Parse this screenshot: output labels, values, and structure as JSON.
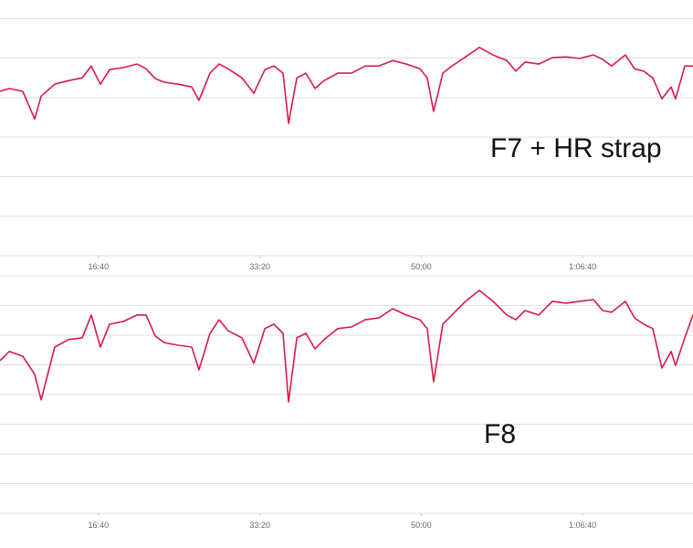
{
  "chart_data": [
    {
      "type": "line",
      "annotation": "F7 + HR strap",
      "color": "#d81b45",
      "grid": true,
      "xlim": [
        390,
        4684
      ],
      "xticks": [
        {
          "value": 1000,
          "label": "16:40"
        },
        {
          "value": 2000,
          "label": "33:20"
        },
        {
          "value": 3000,
          "label": "50:00"
        },
        {
          "value": 4000,
          "label": "1:06:40"
        }
      ],
      "ylim": [
        0,
        6.47
      ],
      "yticks": [
        0,
        1,
        2,
        3,
        4,
        5,
        6
      ],
      "x": [
        390,
        447,
        531,
        605,
        645,
        729,
        814,
        899,
        956,
        1012,
        1069,
        1154,
        1239,
        1295,
        1352,
        1408,
        1493,
        1578,
        1623,
        1691,
        1748,
        1804,
        1889,
        1963,
        2031,
        2087,
        2144,
        2178,
        2229,
        2285,
        2342,
        2398,
        2483,
        2568,
        2653,
        2738,
        2823,
        2907,
        2992,
        3037,
        3077,
        3134,
        3190,
        3275,
        3360,
        3445,
        3530,
        3586,
        3643,
        3728,
        3812,
        3897,
        3982,
        4067,
        4124,
        4180,
        4265,
        4322,
        4378,
        4435,
        4491,
        4548,
        4576,
        4633,
        4684
      ],
      "values": [
        4.16,
        4.23,
        4.16,
        3.46,
        4.04,
        4.34,
        4.43,
        4.5,
        4.8,
        4.34,
        4.71,
        4.76,
        4.85,
        4.73,
        4.48,
        4.39,
        4.34,
        4.27,
        3.93,
        4.62,
        4.85,
        4.73,
        4.5,
        4.11,
        4.71,
        4.8,
        4.62,
        3.35,
        4.5,
        4.62,
        4.23,
        4.43,
        4.62,
        4.62,
        4.8,
        4.8,
        4.94,
        4.85,
        4.73,
        4.5,
        3.65,
        4.62,
        4.8,
        5.03,
        5.27,
        5.08,
        4.94,
        4.67,
        4.9,
        4.85,
        5.01,
        5.03,
        4.99,
        5.08,
        4.97,
        4.8,
        5.08,
        4.73,
        4.67,
        4.5,
        3.97,
        4.27,
        3.97,
        4.8,
        4.8
      ]
    },
    {
      "type": "line",
      "annotation": "F8",
      "color": "#d81b45",
      "grid": true,
      "xlim": [
        390,
        4684
      ],
      "xticks": [
        {
          "value": 1000,
          "label": "16:40"
        },
        {
          "value": 2000,
          "label": "33:20"
        },
        {
          "value": 3000,
          "label": "50:00"
        },
        {
          "value": 4000,
          "label": "1:06:40"
        }
      ],
      "ylim": [
        0,
        8.06
      ],
      "yticks": [
        0,
        1,
        2,
        3,
        4,
        5,
        6,
        7,
        8
      ],
      "x": [
        390,
        447,
        531,
        605,
        645,
        729,
        814,
        899,
        956,
        1012,
        1069,
        1154,
        1239,
        1295,
        1352,
        1408,
        1493,
        1578,
        1623,
        1691,
        1748,
        1804,
        1889,
        1963,
        2031,
        2087,
        2144,
        2178,
        2229,
        2285,
        2342,
        2398,
        2483,
        2568,
        2653,
        2738,
        2823,
        2907,
        2992,
        3037,
        3077,
        3134,
        3190,
        3275,
        3360,
        3445,
        3530,
        3586,
        3643,
        3728,
        3812,
        3897,
        3982,
        4067,
        4124,
        4180,
        4265,
        4322,
        4378,
        4435,
        4491,
        4548,
        4576,
        4633,
        4684
      ],
      "values": [
        5.14,
        5.45,
        5.29,
        4.68,
        3.82,
        5.6,
        5.85,
        5.91,
        6.68,
        5.6,
        6.37,
        6.46,
        6.68,
        6.68,
        5.97,
        5.75,
        5.66,
        5.6,
        4.83,
        6.06,
        6.52,
        6.15,
        5.91,
        5.05,
        6.22,
        6.37,
        6.06,
        3.75,
        5.91,
        6.06,
        5.54,
        5.85,
        6.22,
        6.28,
        6.52,
        6.58,
        6.89,
        6.68,
        6.52,
        6.22,
        4.43,
        6.37,
        6.68,
        7.14,
        7.51,
        7.14,
        6.68,
        6.52,
        6.83,
        6.68,
        7.14,
        7.08,
        7.14,
        7.2,
        6.83,
        6.77,
        7.14,
        6.58,
        6.37,
        6.22,
        4.89,
        5.45,
        4.98,
        5.91,
        6.68
      ]
    }
  ]
}
